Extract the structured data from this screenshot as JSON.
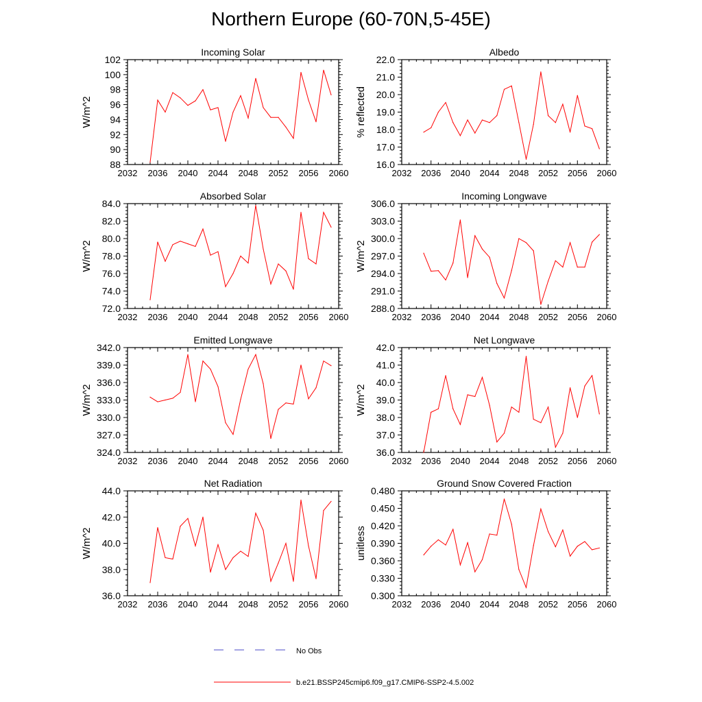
{
  "figure": {
    "title": "Northern Europe (60-70N,5-45E)"
  },
  "colors": {
    "model_line": "#ff0000",
    "obs_line": "#4a4ac8",
    "axis": "#000000"
  },
  "legend": [
    {
      "label": "No Obs",
      "style": "dashed",
      "color": "#4a4ac8"
    },
    {
      "label": "b.e21.BSSP245cmip6.f09_g17.CMIP6-SSP2-4.5.002",
      "style": "solid",
      "color": "#ff0000"
    }
  ],
  "chart_data": [
    {
      "type": "line",
      "title": "Incoming Solar",
      "ylabel": "W/m^2",
      "xlim": [
        2032,
        2060
      ],
      "xticks": [
        2032,
        2036,
        2040,
        2044,
        2048,
        2052,
        2056,
        2060
      ],
      "xtick_labels": [
        "2032",
        "2036",
        "2040",
        "2044",
        "2048",
        "2052",
        "2056",
        "2060"
      ],
      "ylim": [
        88,
        102
      ],
      "yticks": [
        88,
        90,
        92,
        94,
        96,
        98,
        100,
        102
      ],
      "ytick_labels": [
        "88",
        "90",
        "92",
        "94",
        "96",
        "98",
        "100",
        "102"
      ],
      "x": [
        2035,
        2036,
        2037,
        2038,
        2039,
        2040,
        2041,
        2042,
        2043,
        2044,
        2045,
        2046,
        2047,
        2048,
        2049,
        2050,
        2051,
        2052,
        2053,
        2054,
        2055,
        2056,
        2057,
        2058,
        2059
      ],
      "values": [
        88.3,
        96.6,
        95.0,
        97.6,
        96.9,
        95.9,
        96.5,
        98.0,
        95.3,
        95.6,
        91.1,
        95.0,
        97.2,
        94.2,
        99.5,
        95.6,
        94.3,
        94.3,
        93.0,
        91.5,
        100.3,
        96.6,
        93.7,
        100.6,
        97.3
      ]
    },
    {
      "type": "line",
      "title": "Albedo",
      "ylabel": "% reflected",
      "xlim": [
        2032,
        2060
      ],
      "xticks": [
        2032,
        2036,
        2040,
        2044,
        2048,
        2052,
        2056,
        2060
      ],
      "xtick_labels": [
        "2032",
        "2036",
        "2040",
        "2044",
        "2048",
        "2052",
        "2056",
        "2060"
      ],
      "ylim": [
        16.0,
        22.0
      ],
      "yticks": [
        16,
        17,
        18,
        19,
        20,
        21,
        22
      ],
      "ytick_labels": [
        "16.0",
        "17.0",
        "18.0",
        "19.0",
        "20.0",
        "21.0",
        "22.0"
      ],
      "x": [
        2035,
        2036,
        2037,
        2038,
        2039,
        2040,
        2041,
        2042,
        2043,
        2044,
        2045,
        2046,
        2047,
        2048,
        2049,
        2050,
        2051,
        2052,
        2053,
        2054,
        2055,
        2056,
        2057,
        2058,
        2059
      ],
      "values": [
        17.85,
        18.1,
        19.0,
        19.55,
        18.4,
        17.65,
        18.55,
        17.8,
        18.55,
        18.4,
        18.8,
        20.3,
        20.5,
        18.4,
        16.3,
        18.3,
        21.3,
        18.8,
        18.4,
        19.45,
        17.85,
        19.95,
        18.2,
        18.05,
        16.9
      ]
    },
    {
      "type": "line",
      "title": "Absorbed Solar",
      "ylabel": "W/m^2",
      "xlim": [
        2032,
        2060
      ],
      "xticks": [
        2032,
        2036,
        2040,
        2044,
        2048,
        2052,
        2056,
        2060
      ],
      "xtick_labels": [
        "2032",
        "2036",
        "2040",
        "2044",
        "2048",
        "2052",
        "2056",
        "2060"
      ],
      "ylim": [
        72.0,
        84.0
      ],
      "yticks": [
        72,
        74,
        76,
        78,
        80,
        82,
        84
      ],
      "ytick_labels": [
        "72.0",
        "74.0",
        "76.0",
        "78.0",
        "80.0",
        "82.0",
        "84.0"
      ],
      "x": [
        2035,
        2036,
        2037,
        2038,
        2039,
        2040,
        2041,
        2042,
        2043,
        2044,
        2045,
        2046,
        2047,
        2048,
        2049,
        2050,
        2051,
        2052,
        2053,
        2054,
        2055,
        2056,
        2057,
        2058,
        2059
      ],
      "values": [
        73.0,
        79.6,
        77.4,
        79.3,
        79.7,
        79.4,
        79.1,
        81.1,
        78.1,
        78.5,
        74.5,
        76.0,
        78.0,
        77.2,
        83.8,
        78.8,
        74.8,
        77.1,
        76.3,
        74.2,
        83.0,
        77.7,
        77.1,
        83.0,
        81.3
      ]
    },
    {
      "type": "line",
      "title": "Incoming Longwave",
      "ylabel": "W/m^2",
      "xlim": [
        2032,
        2060
      ],
      "xticks": [
        2032,
        2036,
        2040,
        2044,
        2048,
        2052,
        2056,
        2060
      ],
      "xtick_labels": [
        "2032",
        "2036",
        "2040",
        "2044",
        "2048",
        "2052",
        "2056",
        "2060"
      ],
      "ylim": [
        288.0,
        306.0
      ],
      "yticks": [
        288,
        291,
        294,
        297,
        300,
        303,
        306
      ],
      "ytick_labels": [
        "288.0",
        "291.0",
        "294.0",
        "297.0",
        "300.0",
        "303.0",
        "306.0"
      ],
      "x": [
        2035,
        2036,
        2037,
        2038,
        2039,
        2040,
        2041,
        2042,
        2043,
        2044,
        2045,
        2046,
        2047,
        2048,
        2049,
        2050,
        2051,
        2052,
        2053,
        2054,
        2055,
        2056,
        2057,
        2058,
        2059
      ],
      "values": [
        297.5,
        294.4,
        294.5,
        292.9,
        295.8,
        303.2,
        293.3,
        300.5,
        298.2,
        296.8,
        292.3,
        289.8,
        294.5,
        300.0,
        299.3,
        297.9,
        288.7,
        292.7,
        296.2,
        295.1,
        299.3,
        295.1,
        295.1,
        299.4,
        300.7
      ]
    },
    {
      "type": "line",
      "title": "Emitted Longwave",
      "ylabel": "W/m^2",
      "xlim": [
        2032,
        2060
      ],
      "xticks": [
        2032,
        2036,
        2040,
        2044,
        2048,
        2052,
        2056,
        2060
      ],
      "xtick_labels": [
        "2032",
        "2036",
        "2040",
        "2044",
        "2048",
        "2052",
        "2056",
        "2060"
      ],
      "ylim": [
        324.0,
        342.0
      ],
      "yticks": [
        324,
        327,
        330,
        333,
        336,
        339,
        342
      ],
      "ytick_labels": [
        "324.0",
        "327.0",
        "330.0",
        "333.0",
        "336.0",
        "339.0",
        "342.0"
      ],
      "x": [
        2035,
        2036,
        2037,
        2038,
        2039,
        2040,
        2041,
        2042,
        2043,
        2044,
        2045,
        2046,
        2047,
        2048,
        2049,
        2050,
        2051,
        2052,
        2053,
        2054,
        2055,
        2056,
        2057,
        2058,
        2059
      ],
      "values": [
        333.5,
        332.7,
        333.0,
        333.3,
        334.3,
        340.8,
        332.7,
        339.7,
        338.3,
        335.3,
        329.1,
        327.1,
        333.1,
        338.3,
        340.8,
        335.8,
        326.4,
        331.4,
        332.5,
        332.3,
        339.0,
        333.2,
        335.1,
        339.7,
        338.9
      ]
    },
    {
      "type": "line",
      "title": "Net Longwave",
      "ylabel": "W/m^2",
      "xlim": [
        2032,
        2060
      ],
      "xticks": [
        2032,
        2036,
        2040,
        2044,
        2048,
        2052,
        2056,
        2060
      ],
      "xtick_labels": [
        "2032",
        "2036",
        "2040",
        "2044",
        "2048",
        "2052",
        "2056",
        "2060"
      ],
      "ylim": [
        36.0,
        42.0
      ],
      "yticks": [
        36,
        37,
        38,
        39,
        40,
        41,
        42
      ],
      "ytick_labels": [
        "36.0",
        "37.0",
        "38.0",
        "39.0",
        "40.0",
        "41.0",
        "42.0"
      ],
      "x": [
        2035,
        2036,
        2037,
        2038,
        2039,
        2040,
        2041,
        2042,
        2043,
        2044,
        2045,
        2046,
        2047,
        2048,
        2049,
        2050,
        2051,
        2052,
        2053,
        2054,
        2055,
        2056,
        2057,
        2058,
        2059
      ],
      "values": [
        36.0,
        38.3,
        38.5,
        40.4,
        38.5,
        37.6,
        39.3,
        39.2,
        40.3,
        38.7,
        36.6,
        37.1,
        38.6,
        38.3,
        41.5,
        37.9,
        37.7,
        38.6,
        36.3,
        37.1,
        39.7,
        38.0,
        39.8,
        40.4,
        38.2
      ]
    },
    {
      "type": "line",
      "title": "Net Radiation",
      "ylabel": "W/m^2",
      "xlim": [
        2032,
        2060
      ],
      "xticks": [
        2032,
        2036,
        2040,
        2044,
        2048,
        2052,
        2056,
        2060
      ],
      "xtick_labels": [
        "2032",
        "2036",
        "2040",
        "2044",
        "2048",
        "2052",
        "2056",
        "2060"
      ],
      "ylim": [
        36.0,
        44.0
      ],
      "yticks": [
        36,
        38,
        40,
        42,
        44
      ],
      "ytick_labels": [
        "36.0",
        "38.0",
        "40.0",
        "42.0",
        "44.0"
      ],
      "x": [
        2035,
        2036,
        2037,
        2038,
        2039,
        2040,
        2041,
        2042,
        2043,
        2044,
        2045,
        2046,
        2047,
        2048,
        2049,
        2050,
        2051,
        2052,
        2053,
        2054,
        2055,
        2056,
        2057,
        2058,
        2059
      ],
      "values": [
        37.0,
        41.2,
        38.9,
        38.8,
        41.3,
        41.9,
        39.8,
        42.0,
        37.8,
        39.9,
        38.0,
        38.9,
        39.4,
        39.0,
        42.3,
        41.0,
        37.1,
        38.5,
        40.0,
        37.1,
        43.3,
        39.8,
        37.3,
        42.5,
        43.2
      ]
    },
    {
      "type": "line",
      "title": "Ground Snow Covered Fraction",
      "ylabel": "unitless",
      "xlim": [
        2032,
        2060
      ],
      "xticks": [
        2032,
        2036,
        2040,
        2044,
        2048,
        2052,
        2056,
        2060
      ],
      "xtick_labels": [
        "2032",
        "2036",
        "2040",
        "2044",
        "2048",
        "2052",
        "2056",
        "2060"
      ],
      "ylim": [
        0.3,
        0.48
      ],
      "yticks": [
        0.3,
        0.33,
        0.36,
        0.39,
        0.42,
        0.45,
        0.48
      ],
      "ytick_labels": [
        "0.300",
        "0.330",
        "0.360",
        "0.390",
        "0.420",
        "0.450",
        "0.480"
      ],
      "x": [
        2035,
        2036,
        2037,
        2038,
        2039,
        2040,
        2041,
        2042,
        2043,
        2044,
        2045,
        2046,
        2047,
        2048,
        2049,
        2050,
        2051,
        2052,
        2053,
        2054,
        2055,
        2056,
        2057,
        2058,
        2059
      ],
      "values": [
        0.37,
        0.385,
        0.396,
        0.387,
        0.414,
        0.353,
        0.391,
        0.341,
        0.362,
        0.406,
        0.404,
        0.466,
        0.423,
        0.345,
        0.314,
        0.386,
        0.449,
        0.41,
        0.384,
        0.413,
        0.368,
        0.385,
        0.393,
        0.379,
        0.382
      ]
    }
  ]
}
